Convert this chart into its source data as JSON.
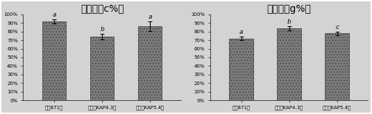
{
  "chart1_title": "上染率（c%）",
  "chart2_title": "固色率（g%）",
  "categories": [
    "对照871系",
    "转基因KAP4.3系",
    "转基因KAP5.4系"
  ],
  "chart1_values": [
    92,
    74,
    86
  ],
  "chart1_errors": [
    2.5,
    3.0,
    5.5
  ],
  "chart1_labels": [
    "a",
    "b",
    "a"
  ],
  "chart2_values": [
    72,
    84,
    78
  ],
  "chart2_errors": [
    2.0,
    2.5,
    2.0
  ],
  "chart2_labels": [
    "a",
    "b",
    "c"
  ],
  "bar_facecolor": "#7a7a7a",
  "bar_edgecolor": "#333333",
  "hatch_pattern": "....",
  "hatch_color": "#4a7a4a",
  "ylim": [
    0,
    100
  ],
  "yticks": [
    0,
    10,
    20,
    30,
    40,
    50,
    60,
    70,
    80,
    90,
    100
  ],
  "yticklabels": [
    "0%",
    "10%",
    "20%",
    "30%",
    "40%",
    "50%",
    "60%",
    "70%",
    "80%",
    "90%",
    "100%"
  ],
  "bg_color": "#d3d3d3",
  "plot_bg_color": "#d3d3d3",
  "title_fontsize": 10,
  "tick_fontsize": 5,
  "label_fontsize": 5,
  "sig_fontsize": 6.5,
  "bar_width": 0.5
}
